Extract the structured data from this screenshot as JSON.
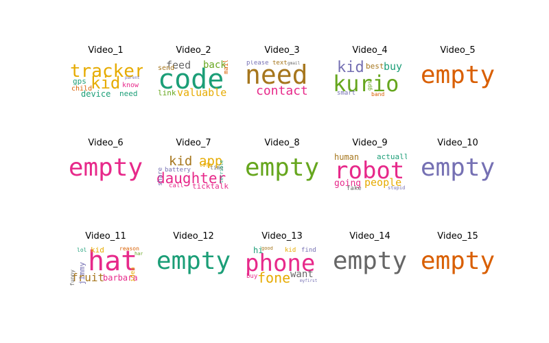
{
  "chart_data": {
    "type": "wordcloud-grid",
    "panels": [
      {
        "title": "Video_1",
        "empty": false,
        "words": [
          {
            "text": "tracker",
            "color": "#e6ab02"
          },
          {
            "text": "kid",
            "color": "#e6ab02"
          },
          {
            "text": "device",
            "color": "#1b9e77"
          },
          {
            "text": "need",
            "color": "#1b9e77"
          },
          {
            "text": "gps",
            "color": "#1b9e77"
          },
          {
            "text": "child",
            "color": "#d95f02"
          },
          {
            "text": "know",
            "color": "#e7298a"
          },
          {
            "text": "parent",
            "color": "#7570b3"
          }
        ]
      },
      {
        "title": "Video_2",
        "empty": false,
        "words": [
          {
            "text": "code",
            "color": "#1b9e77"
          },
          {
            "text": "feed",
            "color": "#666666"
          },
          {
            "text": "back",
            "color": "#66a61e"
          },
          {
            "text": "send",
            "color": "#a6761d"
          },
          {
            "text": "valuable",
            "color": "#e6ab02"
          },
          {
            "text": "link",
            "color": "#66a61e"
          },
          {
            "text": "mail",
            "color": "#d95f02"
          }
        ]
      },
      {
        "title": "Video_3",
        "empty": false,
        "words": [
          {
            "text": "need",
            "color": "#a6761d"
          },
          {
            "text": "contact",
            "color": "#e7298a"
          },
          {
            "text": "please",
            "color": "#7570b3"
          },
          {
            "text": "text",
            "color": "#a6761d"
          },
          {
            "text": "gmail",
            "color": "#666666"
          }
        ]
      },
      {
        "title": "Video_4",
        "empty": false,
        "words": [
          {
            "text": "kurio",
            "color": "#66a61e"
          },
          {
            "text": "kid",
            "color": "#7570b3"
          },
          {
            "text": "best",
            "color": "#a6761d"
          },
          {
            "text": "buy",
            "color": "#1b9e77"
          },
          {
            "text": "smart",
            "color": "#7570b3"
          },
          {
            "text": "band",
            "color": "#d95f02"
          },
          {
            "text": "gps",
            "color": "#66a61e"
          }
        ]
      },
      {
        "title": "Video_5",
        "empty": true,
        "empty_text": "empty",
        "color": "#d95f02"
      },
      {
        "title": "Video_6",
        "empty": true,
        "empty_text": "empty",
        "color": "#e7298a"
      },
      {
        "title": "Video_7",
        "empty": false,
        "words": [
          {
            "text": "daughter",
            "color": "#e7298a"
          },
          {
            "text": "kid",
            "color": "#a6761d"
          },
          {
            "text": "app",
            "color": "#e6ab02"
          },
          {
            "text": "ticktalk",
            "color": "#e7298a"
          },
          {
            "text": "battery",
            "color": "#7570b3"
          },
          {
            "text": "call",
            "color": "#e7298a"
          },
          {
            "text": "time",
            "color": "#666666"
          },
          {
            "text": "life",
            "color": "#e6ab02"
          },
          {
            "text": "share",
            "color": "#7570b3"
          },
          {
            "text": "terrible",
            "color": "#1b9e77"
          }
        ]
      },
      {
        "title": "Video_8",
        "empty": true,
        "empty_text": "empty",
        "color": "#66a61e"
      },
      {
        "title": "Video_9",
        "empty": false,
        "words": [
          {
            "text": "robot",
            "color": "#e7298a"
          },
          {
            "text": "human",
            "color": "#a6761d"
          },
          {
            "text": "actually",
            "color": "#1b9e77"
          },
          {
            "text": "going",
            "color": "#e7298a"
          },
          {
            "text": "people",
            "color": "#e6ab02"
          },
          {
            "text": "fake",
            "color": "#666666"
          },
          {
            "text": "stupid",
            "color": "#7570b3"
          }
        ]
      },
      {
        "title": "Video_10",
        "empty": true,
        "empty_text": "empty",
        "color": "#7570b3"
      },
      {
        "title": "Video_11",
        "empty": false,
        "words": [
          {
            "text": "hat",
            "color": "#e7298a"
          },
          {
            "text": "fruit",
            "color": "#a6761d"
          },
          {
            "text": "barbara",
            "color": "#e7298a"
          },
          {
            "text": "jimmy",
            "color": "#7570b3"
          },
          {
            "text": "kid",
            "color": "#e6ab02"
          },
          {
            "text": "lol",
            "color": "#1b9e77"
          },
          {
            "text": "reason",
            "color": "#d95f02"
          },
          {
            "text": "idea",
            "color": "#e6ab02"
          },
          {
            "text": "funny",
            "color": "#666666"
          },
          {
            "text": "hark",
            "color": "#66a61e"
          }
        ]
      },
      {
        "title": "Video_12",
        "empty": true,
        "empty_text": "empty",
        "color": "#1b9e77"
      },
      {
        "title": "Video_13",
        "empty": false,
        "words": [
          {
            "text": "phone",
            "color": "#e7298a"
          },
          {
            "text": "fone",
            "color": "#e6ab02"
          },
          {
            "text": "want",
            "color": "#666666"
          },
          {
            "text": "hi",
            "color": "#1b9e77"
          },
          {
            "text": "kid",
            "color": "#e6ab02"
          },
          {
            "text": "find",
            "color": "#7570b3"
          },
          {
            "text": "buy",
            "color": "#e7298a"
          },
          {
            "text": "good",
            "color": "#a6761d"
          },
          {
            "text": "myfirst",
            "color": "#7570b3"
          }
        ]
      },
      {
        "title": "Video_14",
        "empty": true,
        "empty_text": "empty",
        "color": "#666666"
      },
      {
        "title": "Video_15",
        "empty": true,
        "empty_text": "empty",
        "color": "#d95f02"
      }
    ]
  }
}
